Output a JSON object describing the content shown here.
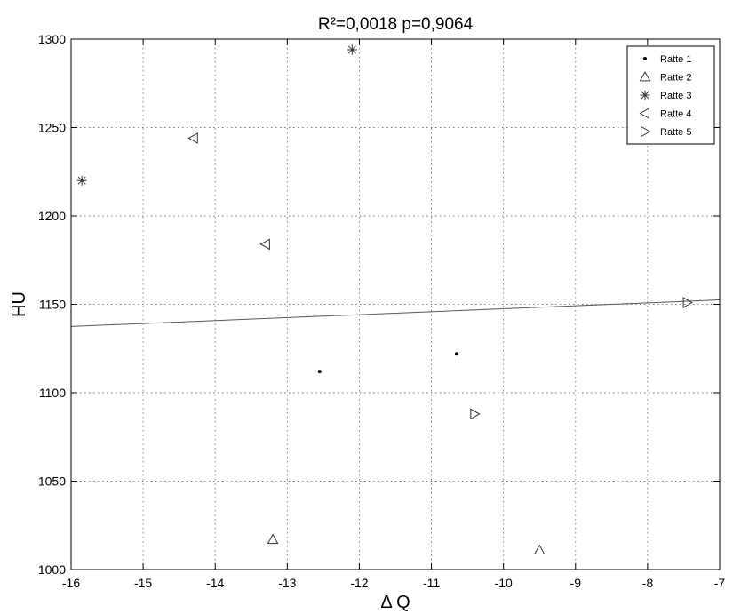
{
  "chart_data": {
    "type": "scatter",
    "title": "R²=0,0018  p=0,9064",
    "xlabel": "Δ Q",
    "ylabel": "HU",
    "xlim": [
      -16,
      -7
    ],
    "ylim": [
      1000,
      1300
    ],
    "x_ticks": [
      -16,
      -15,
      -14,
      -13,
      -12,
      -11,
      -10,
      -9,
      -8,
      -7
    ],
    "y_ticks": [
      1000,
      1050,
      1100,
      1150,
      1200,
      1250,
      1300
    ],
    "x_tick_labels": [
      "-16",
      "-15",
      "-14",
      "-13",
      "-12",
      "-11",
      "-10",
      "-9",
      "-8",
      "-7"
    ],
    "y_tick_labels": [
      "1000",
      "1050",
      "1100",
      "1150",
      "1200",
      "1250",
      "1300"
    ],
    "grid": true,
    "legend_position": "top-right",
    "series": [
      {
        "name": "Ratte 1",
        "marker": "dot",
        "points": [
          [
            -12.55,
            1112
          ],
          [
            -10.65,
            1122
          ]
        ]
      },
      {
        "name": "Ratte 2",
        "marker": "triangle-up",
        "points": [
          [
            -13.2,
            1017
          ],
          [
            -9.5,
            1011
          ]
        ]
      },
      {
        "name": "Ratte 3",
        "marker": "asterisk",
        "points": [
          [
            -15.85,
            1220
          ],
          [
            -12.1,
            1294
          ]
        ]
      },
      {
        "name": "Ratte 4",
        "marker": "triangle-left",
        "points": [
          [
            -14.3,
            1244
          ],
          [
            -13.3,
            1184
          ]
        ]
      },
      {
        "name": "Ratte 5",
        "marker": "triangle-right",
        "points": [
          [
            -10.4,
            1088
          ],
          [
            -7.45,
            1151
          ]
        ]
      }
    ],
    "regression_line": {
      "points": [
        [
          -16,
          1137.5
        ],
        [
          -7,
          1152.5
        ]
      ]
    }
  }
}
